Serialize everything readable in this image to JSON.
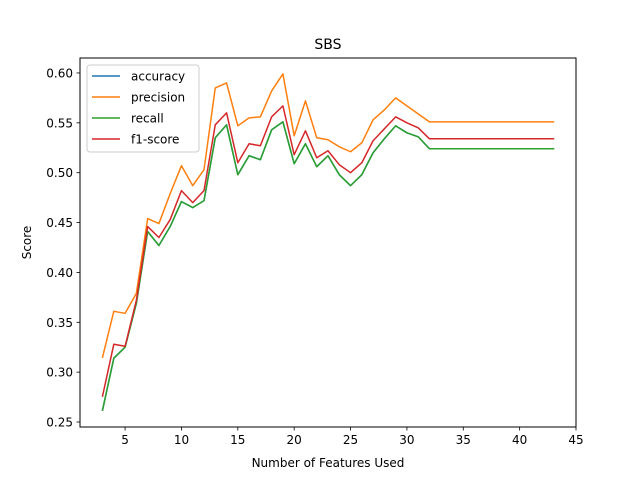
{
  "chart_data": {
    "type": "line",
    "title": "SBS",
    "xlabel": "Number of Features Used",
    "ylabel": "Score",
    "xlim": [
      1.0,
      45.0
    ],
    "ylim": [
      0.245,
      0.615
    ],
    "xticks": [
      5,
      10,
      15,
      20,
      25,
      30,
      35,
      40,
      45
    ],
    "yticks": [
      0.25,
      0.3,
      0.35,
      0.4,
      0.45,
      0.5,
      0.55,
      0.6
    ],
    "grid": false,
    "legend_position": "top-left",
    "x": [
      3,
      4,
      5,
      6,
      7,
      8,
      9,
      10,
      11,
      12,
      13,
      14,
      15,
      16,
      17,
      18,
      19,
      20,
      21,
      22,
      23,
      24,
      25,
      26,
      27,
      28,
      29,
      30,
      31,
      32,
      33,
      34,
      35,
      36,
      37,
      38,
      39,
      40,
      41,
      42,
      43
    ],
    "series": [
      {
        "name": "accuracy",
        "color": "#1f77b4",
        "values": [
          0.262,
          0.314,
          0.325,
          0.369,
          0.441,
          0.427,
          0.446,
          0.471,
          0.465,
          0.472,
          0.535,
          0.548,
          0.498,
          0.517,
          0.513,
          0.543,
          0.551,
          0.509,
          0.529,
          0.506,
          0.517,
          0.498,
          0.487,
          0.498,
          0.52,
          0.534,
          0.547,
          0.54,
          0.536,
          0.524,
          0.524,
          0.524,
          0.524,
          0.524,
          0.524,
          0.524,
          0.524,
          0.524,
          0.524,
          0.524,
          0.524
        ]
      },
      {
        "name": "precision",
        "color": "#ff7f0e",
        "values": [
          0.315,
          0.361,
          0.359,
          0.379,
          0.454,
          0.449,
          0.479,
          0.507,
          0.487,
          0.503,
          0.585,
          0.59,
          0.547,
          0.555,
          0.556,
          0.582,
          0.599,
          0.537,
          0.572,
          0.535,
          0.533,
          0.526,
          0.521,
          0.53,
          0.553,
          0.563,
          0.575,
          0.567,
          0.559,
          0.551,
          0.551,
          0.551,
          0.551,
          0.551,
          0.551,
          0.551,
          0.551,
          0.551,
          0.551,
          0.551,
          0.551
        ]
      },
      {
        "name": "recall",
        "color": "#2ca02c",
        "values": [
          0.262,
          0.314,
          0.325,
          0.369,
          0.441,
          0.427,
          0.446,
          0.471,
          0.465,
          0.472,
          0.535,
          0.548,
          0.498,
          0.517,
          0.513,
          0.543,
          0.551,
          0.509,
          0.529,
          0.506,
          0.517,
          0.498,
          0.487,
          0.498,
          0.52,
          0.534,
          0.547,
          0.54,
          0.536,
          0.524,
          0.524,
          0.524,
          0.524,
          0.524,
          0.524,
          0.524,
          0.524,
          0.524,
          0.524,
          0.524,
          0.524
        ]
      },
      {
        "name": "f1-score",
        "color": "#d62728",
        "values": [
          0.276,
          0.328,
          0.326,
          0.372,
          0.446,
          0.435,
          0.453,
          0.482,
          0.47,
          0.482,
          0.548,
          0.56,
          0.51,
          0.529,
          0.527,
          0.556,
          0.567,
          0.518,
          0.542,
          0.515,
          0.522,
          0.508,
          0.5,
          0.51,
          0.532,
          0.544,
          0.556,
          0.55,
          0.545,
          0.534,
          0.534,
          0.534,
          0.534,
          0.534,
          0.534,
          0.534,
          0.534,
          0.534,
          0.534,
          0.534,
          0.534
        ]
      }
    ]
  }
}
